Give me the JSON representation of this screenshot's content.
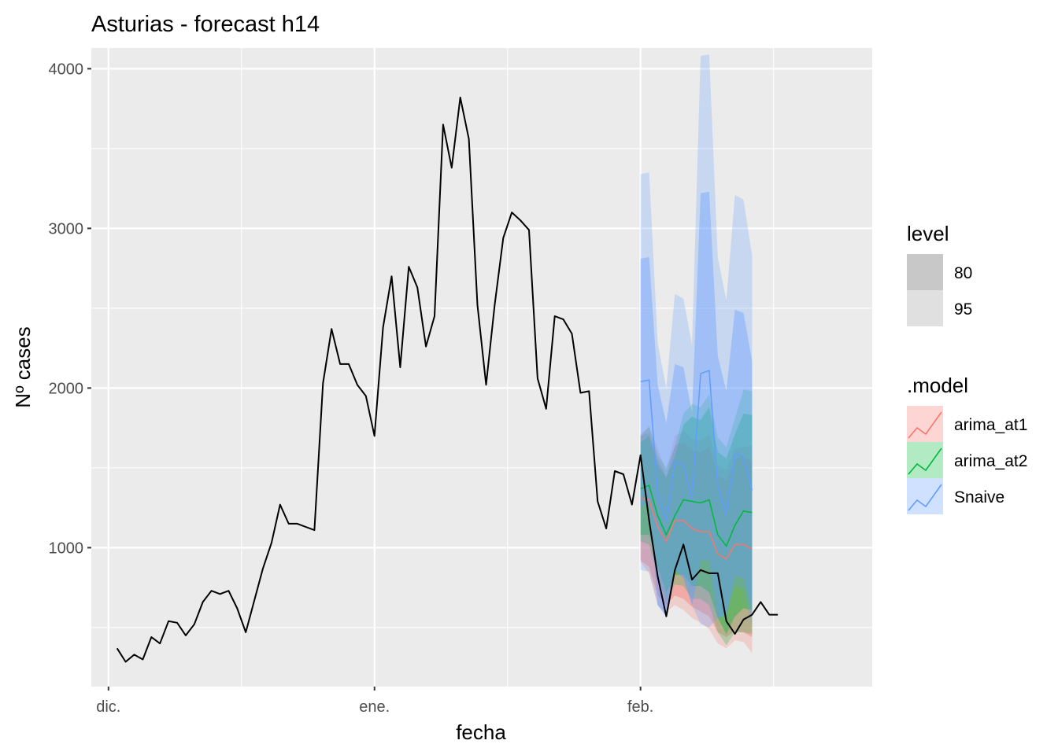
{
  "chart_data": {
    "type": "line",
    "title": "Asturias - forecast h14",
    "xlabel": "fecha",
    "ylabel": "Nº cases",
    "x_range": [
      "2020-11-29",
      "2021-02-28"
    ],
    "ylim": [
      130,
      4130
    ],
    "y_ticks": [
      1000,
      2000,
      3000,
      4000
    ],
    "x_ticks": [
      {
        "date": "2020-12-01",
        "label": "dic."
      },
      {
        "date": "2021-01-01",
        "label": "ene."
      },
      {
        "date": "2021-02-01",
        "label": "feb."
      }
    ],
    "grid": true,
    "legend_position": "right",
    "observed": {
      "start": "2020-12-02",
      "values": [
        370,
        285,
        330,
        300,
        440,
        400,
        540,
        530,
        450,
        520,
        660,
        730,
        710,
        730,
        620,
        470,
        670,
        870,
        1030,
        1270,
        1150,
        1150,
        1130,
        1110,
        2030,
        2370,
        2150,
        2150,
        2020,
        1950,
        1700,
        2380,
        2700,
        2130,
        2760,
        2630,
        2260,
        2450,
        3650,
        3380,
        3820,
        3560,
        2520,
        2020,
        2520,
        2940,
        3100,
        3050,
        2990,
        2060,
        1870,
        2450,
        2430,
        2340,
        1970,
        1980,
        1290,
        1120,
        1480,
        1460,
        1270,
        1580,
        1170,
        820,
        570,
        860,
        1020,
        800,
        860,
        840,
        840,
        540,
        460,
        550,
        580,
        660,
        580,
        580
      ]
    },
    "level_legend": {
      "title": "level",
      "items": [
        {
          "label": "80",
          "color": "#c8c8c8"
        },
        {
          "label": "95",
          "color": "#e0e0e0"
        }
      ]
    },
    "model_legend": {
      "title": ".model",
      "items": [
        {
          "label": "arima_at1",
          "color": "#f8766d"
        },
        {
          "label": "arima_at2",
          "color": "#00ba38"
        },
        {
          "label": "Snaive",
          "color": "#619cff"
        }
      ]
    },
    "forecasts": {
      "start": "2021-02-01",
      "models": [
        {
          "name": "arima_at1",
          "color": "#f8766d",
          "mean": [
            1310,
            1300,
            1130,
            1040,
            1170,
            1170,
            1120,
            1100,
            1100,
            960,
            930,
            1020,
            1020,
            990
          ],
          "lo80": [
            920,
            880,
            700,
            640,
            700,
            680,
            630,
            600,
            570,
            470,
            440,
            480,
            470,
            440
          ],
          "hi80": [
            1700,
            1720,
            1560,
            1440,
            1640,
            1660,
            1610,
            1600,
            1630,
            1450,
            1420,
            1560,
            1570,
            1540
          ],
          "lo95": [
            910,
            840,
            640,
            600,
            640,
            610,
            560,
            530,
            490,
            400,
            370,
            420,
            410,
            340
          ],
          "hi95": [
            1710,
            1760,
            1620,
            1480,
            1700,
            1730,
            1680,
            1670,
            1710,
            1520,
            1490,
            1620,
            1630,
            1640
          ]
        },
        {
          "name": "arima_at2",
          "color": "#00ba38",
          "mean": [
            1370,
            1390,
            1200,
            1080,
            1200,
            1300,
            1290,
            1280,
            1300,
            1080,
            1010,
            1140,
            1230,
            1220
          ],
          "lo80": [
            1080,
            1080,
            880,
            720,
            830,
            830,
            760,
            760,
            720,
            560,
            460,
            570,
            620,
            610
          ],
          "hi80": [
            1660,
            1700,
            1520,
            1440,
            1570,
            1770,
            1820,
            1800,
            1880,
            1600,
            1560,
            1710,
            1840,
            1830
          ],
          "lo95": [
            1040,
            1020,
            820,
            660,
            770,
            760,
            680,
            680,
            640,
            470,
            390,
            470,
            470,
            460
          ],
          "hi95": [
            1700,
            1760,
            1580,
            1500,
            1630,
            1840,
            1900,
            1880,
            1960,
            1690,
            1630,
            1810,
            1990,
            1980
          ]
        },
        {
          "name": "Snaive",
          "color": "#619cff",
          "mean": [
            2040,
            2050,
            1340,
            1170,
            1540,
            1520,
            1310,
            2090,
            2110,
            1380,
            1210,
            1590,
            1570,
            1360
          ],
          "lo80": [
            1260,
            1270,
            640,
            570,
            860,
            810,
            640,
            920,
            920,
            560,
            580,
            820,
            810,
            600
          ],
          "hi80": [
            2810,
            2820,
            2020,
            1780,
            2150,
            2130,
            1840,
            3220,
            3230,
            2200,
            1980,
            2490,
            2470,
            2170
          ],
          "lo95": [
            860,
            850,
            640,
            570,
            860,
            810,
            640,
            520,
            500,
            560,
            580,
            760,
            740,
            500
          ],
          "hi95": [
            3340,
            3350,
            2280,
            2000,
            2590,
            2560,
            2270,
            4080,
            4090,
            2820,
            2550,
            3210,
            3180,
            2830
          ]
        }
      ]
    }
  }
}
